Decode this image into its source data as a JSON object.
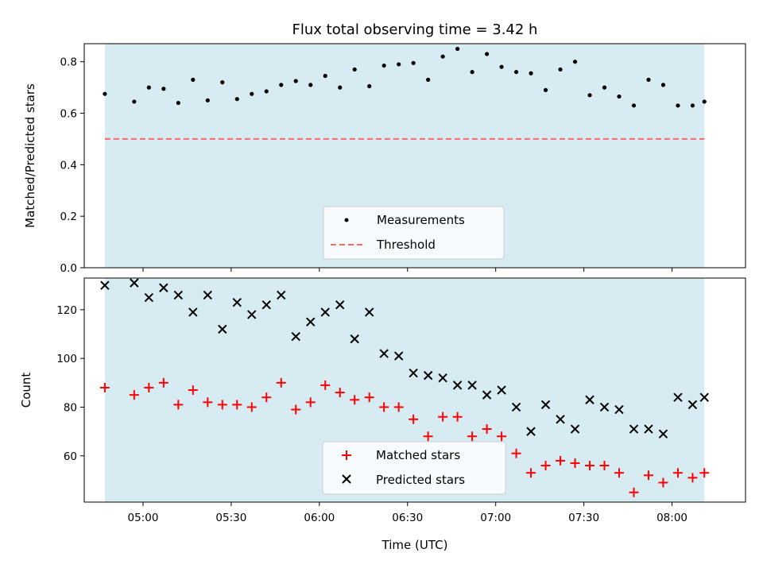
{
  "chart_data": [
    {
      "type": "scatter",
      "title": "Flux total observing time = 3.42 h",
      "xlabel": "",
      "ylabel": "Matched/Predicted stars",
      "ylim": [
        0,
        0.87
      ],
      "yticks": [
        "0.0",
        "0.2",
        "0.4",
        "0.6",
        "0.8"
      ],
      "observing_window": [
        "04:47",
        "08:11"
      ],
      "observing_window_color": "#add8e6",
      "legend_position": "lower center",
      "threshold": {
        "name": "Threshold",
        "value": 0.5,
        "color": "#ff6666"
      },
      "series": [
        {
          "name": "Measurements",
          "color": "#000000",
          "marker": "dot",
          "x": [
            "04:47",
            "04:57",
            "05:02",
            "05:07",
            "05:12",
            "05:17",
            "05:22",
            "05:27",
            "05:32",
            "05:37",
            "05:42",
            "05:47",
            "05:52",
            "05:57",
            "06:02",
            "06:07",
            "06:12",
            "06:17",
            "06:22",
            "06:27",
            "06:32",
            "06:37",
            "06:42",
            "06:47",
            "06:52",
            "06:57",
            "07:02",
            "07:07",
            "07:12",
            "07:17",
            "07:22",
            "07:27",
            "07:32",
            "07:37",
            "07:42",
            "07:47",
            "07:52",
            "07:57",
            "08:02",
            "08:07",
            "08:11"
          ],
          "y": [
            0.675,
            0.645,
            0.7,
            0.695,
            0.64,
            0.73,
            0.65,
            0.72,
            0.655,
            0.675,
            0.685,
            0.71,
            0.725,
            0.71,
            0.745,
            0.7,
            0.77,
            0.705,
            0.785,
            0.79,
            0.795,
            0.73,
            0.82,
            0.85,
            0.76,
            0.83,
            0.78,
            0.76,
            0.755,
            0.69,
            0.77,
            0.8,
            0.67,
            0.7,
            0.665,
            0.63,
            0.73,
            0.71,
            0.63,
            0.63,
            0.645
          ]
        }
      ]
    },
    {
      "type": "scatter",
      "title": "",
      "xlabel": "Time (UTC)",
      "ylabel": "Count",
      "ylim": [
        41,
        133
      ],
      "yticks": [
        "60",
        "80",
        "100",
        "120"
      ],
      "xlim": [
        "04:40",
        "08:25"
      ],
      "xticks": [
        "05:00",
        "05:30",
        "06:00",
        "06:30",
        "07:00",
        "07:30",
        "08:00"
      ],
      "legend_position": "lower center",
      "series": [
        {
          "name": "Matched stars",
          "color": "#ff0000",
          "marker": "+",
          "x": [
            "04:47",
            "04:57",
            "05:02",
            "05:07",
            "05:12",
            "05:17",
            "05:22",
            "05:27",
            "05:32",
            "05:37",
            "05:42",
            "05:47",
            "05:52",
            "05:57",
            "06:02",
            "06:07",
            "06:12",
            "06:17",
            "06:22",
            "06:27",
            "06:32",
            "06:37",
            "06:42",
            "06:47",
            "06:52",
            "06:57",
            "07:02",
            "07:07",
            "07:12",
            "07:17",
            "07:22",
            "07:27",
            "07:32",
            "07:37",
            "07:42",
            "07:47",
            "07:52",
            "07:57",
            "08:02",
            "08:07",
            "08:11"
          ],
          "y": [
            88,
            85,
            88,
            90,
            81,
            87,
            82,
            81,
            81,
            80,
            84,
            90,
            79,
            82,
            89,
            86,
            83,
            84,
            80,
            80,
            75,
            68,
            76,
            76,
            68,
            71,
            68,
            61,
            53,
            56,
            58,
            57,
            56,
            56,
            53,
            45,
            52,
            49,
            53,
            51,
            53
          ]
        },
        {
          "name": "Predicted stars",
          "color": "#000000",
          "marker": "x",
          "x": [
            "04:47",
            "04:57",
            "05:02",
            "05:07",
            "05:12",
            "05:17",
            "05:22",
            "05:27",
            "05:32",
            "05:37",
            "05:42",
            "05:47",
            "05:52",
            "05:57",
            "06:02",
            "06:07",
            "06:12",
            "06:17",
            "06:22",
            "06:27",
            "06:32",
            "06:37",
            "06:42",
            "06:47",
            "06:52",
            "06:57",
            "07:02",
            "07:07",
            "07:12",
            "07:17",
            "07:22",
            "07:27",
            "07:32",
            "07:37",
            "07:42",
            "07:47",
            "07:52",
            "07:57",
            "08:02",
            "08:07",
            "08:11"
          ],
          "y": [
            130,
            131,
            125,
            129,
            126,
            119,
            126,
            112,
            123,
            118,
            122,
            126,
            109,
            115,
            119,
            122,
            108,
            119,
            102,
            101,
            94,
            93,
            92,
            89,
            89,
            85,
            87,
            80,
            70,
            81,
            75,
            71,
            83,
            80,
            79,
            71,
            71,
            69,
            84,
            81,
            84
          ]
        }
      ]
    }
  ]
}
